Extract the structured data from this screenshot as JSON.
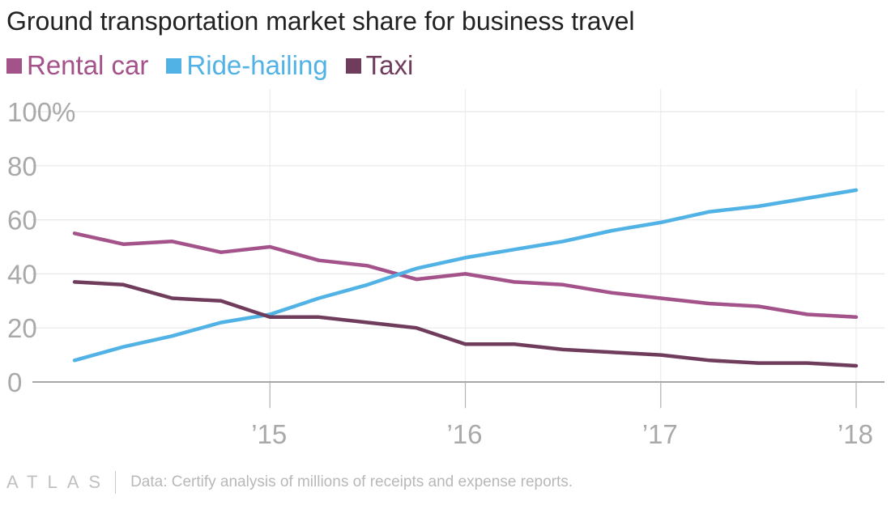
{
  "title": "Ground transportation market share for business travel",
  "footer": {
    "brand": "ATLAS",
    "source": "Data: Certify analysis of millions of receipts and expense reports."
  },
  "chart_data": {
    "type": "line",
    "title": "Ground transportation market share for business travel",
    "xlabel": "",
    "ylabel": "",
    "xlim": [
      2014.0,
      2018.0
    ],
    "ylim": [
      0,
      100
    ],
    "y_ticks": [
      {
        "value": 0,
        "label": "0"
      },
      {
        "value": 20,
        "label": "20"
      },
      {
        "value": 40,
        "label": "40"
      },
      {
        "value": 60,
        "label": "60"
      },
      {
        "value": 80,
        "label": "80"
      },
      {
        "value": 100,
        "label": "100%"
      }
    ],
    "x_ticks": [
      {
        "value": 2015,
        "label": "’15"
      },
      {
        "value": 2016,
        "label": "’16"
      },
      {
        "value": 2017,
        "label": "’17"
      },
      {
        "value": 2018,
        "label": "’18"
      }
    ],
    "grid": true,
    "legend_position": "top-left",
    "x": [
      2014.0,
      2014.25,
      2014.5,
      2014.75,
      2015.0,
      2015.25,
      2015.5,
      2015.75,
      2016.0,
      2016.25,
      2016.5,
      2016.75,
      2017.0,
      2017.25,
      2017.5,
      2017.75,
      2018.0
    ],
    "series": [
      {
        "name": "Rental car",
        "color": "#a4528a",
        "values": [
          55,
          51,
          52,
          48,
          50,
          45,
          43,
          38,
          40,
          37,
          36,
          33,
          31,
          29,
          28,
          25,
          24
        ]
      },
      {
        "name": "Ride-hailing",
        "color": "#51b2e5",
        "values": [
          8,
          13,
          17,
          22,
          25,
          31,
          36,
          42,
          46,
          49,
          52,
          56,
          59,
          63,
          65,
          68,
          71
        ]
      },
      {
        "name": "Taxi",
        "color": "#703c5c",
        "values": [
          37,
          36,
          31,
          30,
          24,
          24,
          22,
          20,
          14,
          14,
          12,
          11,
          10,
          8,
          7,
          7,
          6
        ]
      }
    ]
  }
}
